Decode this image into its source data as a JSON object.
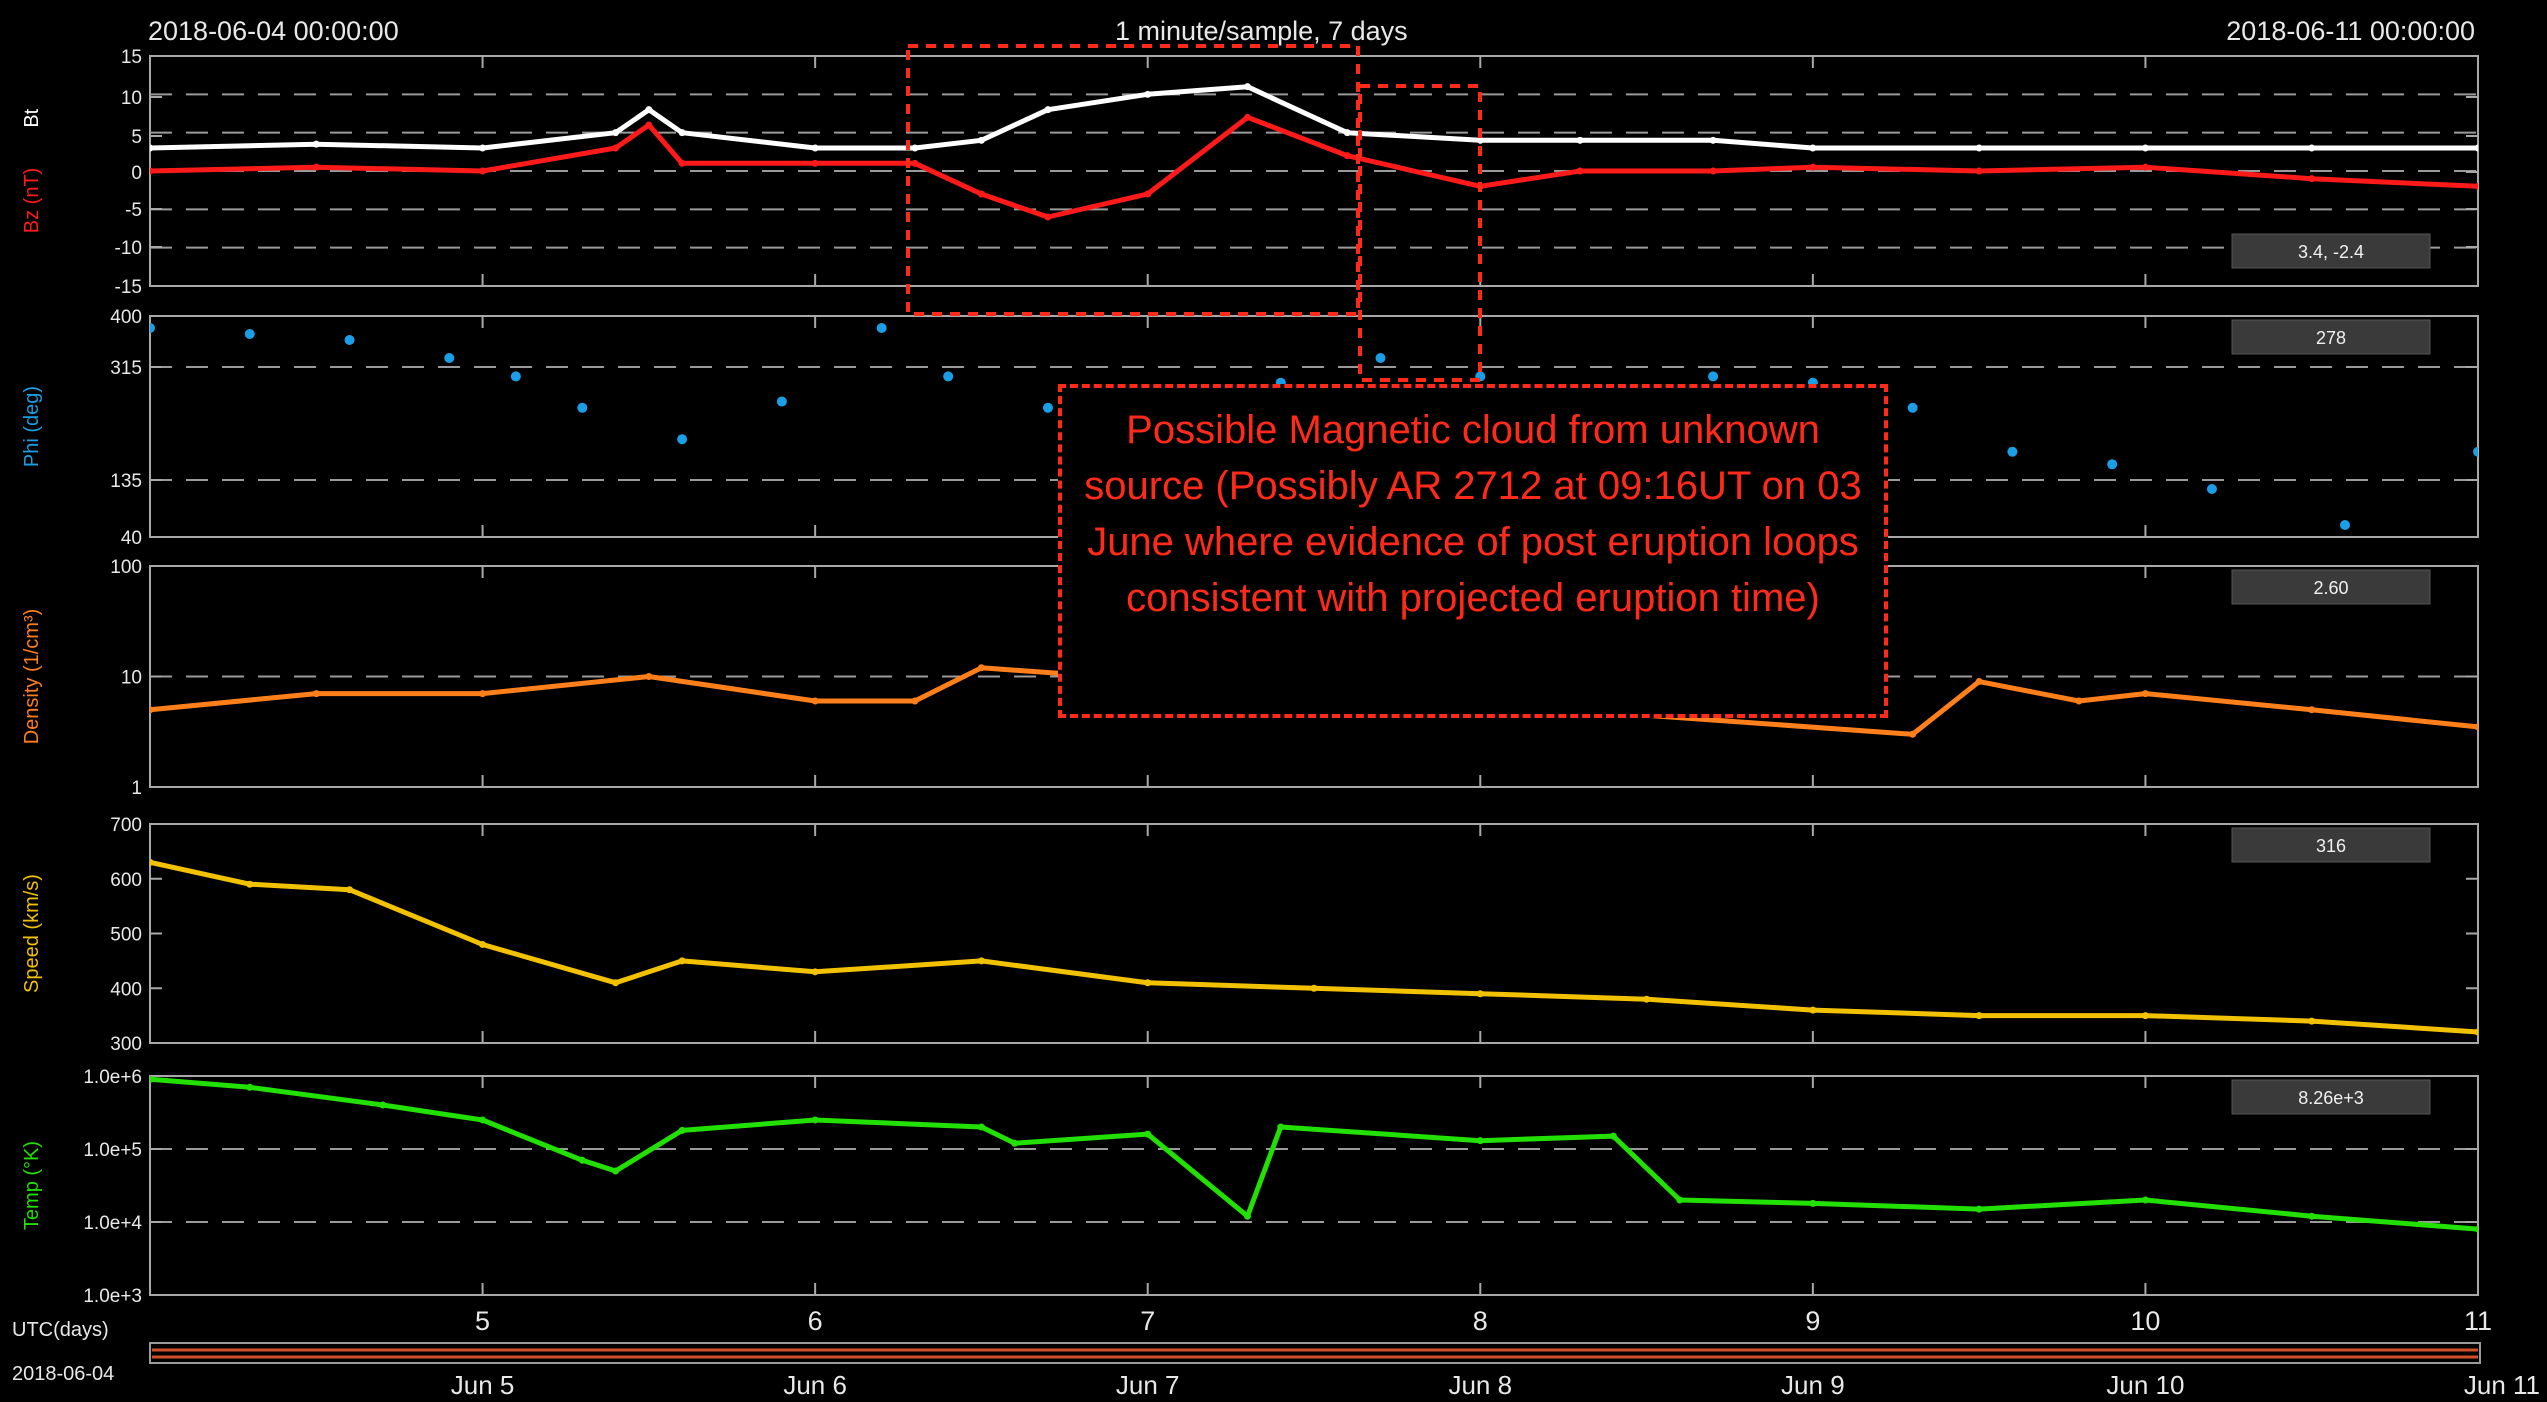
{
  "header": {
    "start_time": "2018-06-04 00:00:00",
    "resolution": "1 minute/sample, 7 days",
    "end_time": "2018-06-11 00:00:00"
  },
  "annotation": {
    "text": "Possible Magnetic cloud  from unknown source (Possibly AR 2712 at 09:16UT on 03 June where evidence of post eruption loops consistent with projected eruption time)",
    "color": "#ff2a1a"
  },
  "footer": {
    "utc_label": "UTC(days)",
    "date_label": "2018-06-04"
  },
  "chart_data": [
    {
      "type": "line",
      "panel": "magnetic-field",
      "ylabel_parts": [
        "Bz (nT)",
        "Bt"
      ],
      "yticks": [
        "15",
        "10",
        "5",
        "0",
        "-5",
        "-10",
        "-15"
      ],
      "ylim": [
        -15,
        15
      ],
      "dashed_gridlines": [
        -10,
        -5,
        0,
        5,
        10
      ],
      "readout": "3.4, -2.4",
      "x": [
        4.0,
        4.5,
        5.0,
        5.4,
        5.5,
        5.6,
        6.0,
        6.3,
        6.5,
        6.7,
        7.0,
        7.3,
        7.6,
        8.0,
        8.3,
        8.7,
        9.0,
        9.5,
        10.0,
        10.5,
        11.0
      ],
      "series": [
        {
          "name": "Bt",
          "color": "#ffffff",
          "values": [
            3,
            3.5,
            3,
            5,
            8,
            5,
            3,
            3,
            4,
            8,
            10,
            11,
            5,
            4,
            4,
            4,
            3,
            3,
            3,
            3,
            3
          ]
        },
        {
          "name": "Bz",
          "color": "#ff1a1a",
          "values": [
            0,
            0.5,
            0,
            3,
            6,
            1,
            1,
            1,
            -3,
            -6,
            -3,
            7,
            2,
            -2,
            0,
            0,
            0.5,
            0,
            0.5,
            -1,
            -2
          ]
        }
      ]
    },
    {
      "type": "scatter",
      "panel": "phi",
      "ylabel": "Phi (deg)",
      "yticks": [
        "400",
        "315",
        "135",
        "40"
      ],
      "yscale": "categorical-sector",
      "dashed_gridlines": [
        315,
        135
      ],
      "readout": "278",
      "color": "#1a9fe6",
      "x": [
        4.0,
        4.3,
        4.6,
        4.9,
        5.1,
        5.3,
        5.6,
        5.9,
        6.2,
        6.4,
        6.7,
        7.0,
        7.4,
        7.7,
        8.0,
        8.3,
        8.7,
        9.0,
        9.3,
        9.6,
        9.9,
        10.2,
        10.6,
        11.0
      ],
      "values": [
        380,
        370,
        360,
        330,
        300,
        250,
        200,
        260,
        380,
        300,
        250,
        280,
        290,
        330,
        300,
        270,
        300,
        290,
        250,
        180,
        160,
        120,
        60,
        180
      ]
    },
    {
      "type": "line",
      "panel": "density",
      "ylabel": "Density (1/cm³)",
      "yticks": [
        "100",
        "10",
        "1"
      ],
      "yscale": "log",
      "ylim": [
        1,
        100
      ],
      "dashed_gridlines": [
        10
      ],
      "readout": "2.60",
      "color": "#ff7f1a",
      "x": [
        4.0,
        4.5,
        5.0,
        5.5,
        6.0,
        6.3,
        6.5,
        9.3,
        9.5,
        9.8,
        10.0,
        10.5,
        11.0
      ],
      "values": [
        5,
        7,
        7,
        10,
        6,
        6,
        12,
        3,
        9,
        6,
        7,
        5,
        3.5
      ]
    },
    {
      "type": "line",
      "panel": "speed",
      "ylabel": "Speed (km/s)",
      "yticks": [
        "700",
        "600",
        "500",
        "400",
        "300"
      ],
      "ylim": [
        300,
        700
      ],
      "readout": "316",
      "color": "#f2c200",
      "x": [
        4.0,
        4.3,
        4.6,
        5.0,
        5.4,
        5.6,
        6.0,
        6.5,
        7.0,
        7.5,
        8.0,
        8.5,
        9.0,
        9.5,
        10.0,
        10.5,
        11.0
      ],
      "values": [
        630,
        590,
        580,
        480,
        410,
        450,
        430,
        450,
        410,
        400,
        390,
        380,
        360,
        350,
        350,
        340,
        320
      ]
    },
    {
      "type": "line",
      "panel": "temperature",
      "ylabel": "Temp (°K)",
      "yticks": [
        "1.0e+6",
        "1.0e+5",
        "1.0e+4",
        "1.0e+3"
      ],
      "yscale": "log",
      "ylim": [
        1000,
        1000000
      ],
      "dashed_gridlines": [
        10000,
        100000
      ],
      "readout": "8.26e+3",
      "color": "#22e000",
      "x": [
        4.0,
        4.3,
        4.7,
        5.0,
        5.3,
        5.4,
        5.6,
        6.0,
        6.5,
        6.6,
        7.0,
        7.3,
        7.4,
        8.0,
        8.4,
        8.6,
        9.0,
        9.5,
        10.0,
        10.5,
        11.0
      ],
      "values": [
        900000,
        700000,
        400000,
        250000,
        70000,
        50000,
        180000,
        250000,
        200000,
        120000,
        160000,
        12000,
        200000,
        130000,
        150000,
        20000,
        18000,
        15000,
        20000,
        12000,
        8000
      ]
    },
    {
      "type": "axis",
      "panel": "time-axis",
      "xlabel": "UTC(days)",
      "xlim": [
        4,
        11
      ],
      "xticks": [
        "5",
        "6",
        "7",
        "8",
        "9",
        "10",
        "11"
      ],
      "xtick_values": [
        5,
        6,
        7,
        8,
        9,
        10,
        11
      ],
      "date_labels": [
        "Jun 5",
        "Jun 6",
        "Jun 7",
        "Jun 8",
        "Jun 9",
        "Jun 10",
        "Jun 11"
      ],
      "date_values": [
        5,
        6,
        7,
        8,
        9,
        10,
        11
      ]
    }
  ]
}
